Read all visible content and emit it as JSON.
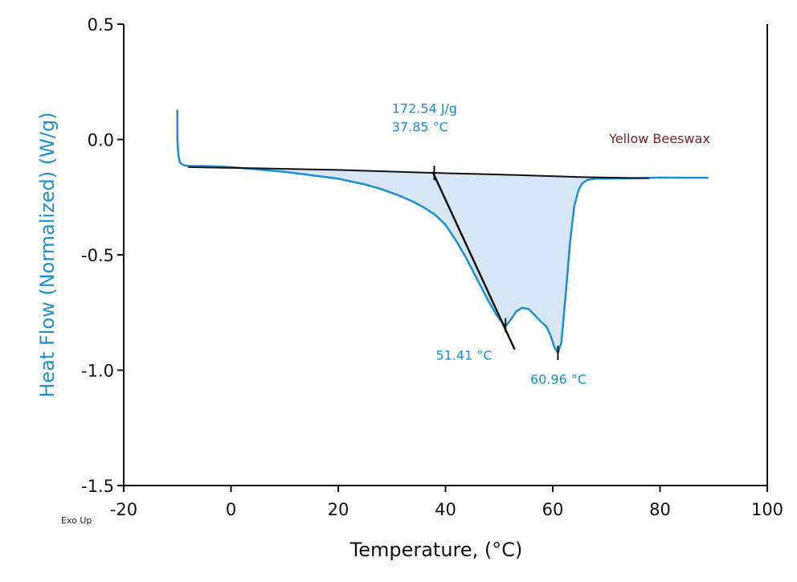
{
  "chart_data": {
    "type": "line",
    "xlabel": "Temperature, (°C)",
    "ylabel": "Heat Flow (Normalized) (W/g)",
    "xlim": [
      -20,
      100
    ],
    "ylim": [
      -1.5,
      0.5
    ],
    "x_ticks": [
      -20,
      0,
      20,
      40,
      60,
      80,
      100
    ],
    "y_ticks": [
      0.5,
      0.0,
      -0.5,
      -1.0,
      -1.5
    ],
    "x_tick_labels": [
      "-20",
      "0",
      "20",
      "40",
      "60",
      "80",
      "100"
    ],
    "y_tick_labels": [
      "0.5",
      "0.0",
      "-0.5",
      "-1.0",
      "-1.5"
    ],
    "corner_label": "Exo Up",
    "grid": false,
    "series": [
      {
        "name": "Yellow Beeswax",
        "color": "#1a8fd1",
        "x": [
          -10.0,
          -10.0,
          -9.8,
          -9.5,
          -9.0,
          -8.0,
          -5,
          0,
          5,
          10,
          15,
          20,
          25,
          28,
          31,
          34,
          36,
          38,
          40,
          42,
          44,
          46,
          48,
          49.5,
          50.8,
          51.4,
          52.2,
          53.2,
          54.3,
          55.5,
          56.8,
          57.8,
          58.8,
          59.6,
          60.3,
          60.96,
          61.6,
          62.3,
          63.2,
          64.0,
          64.8,
          65.5,
          66.5,
          68,
          70,
          75,
          80,
          85,
          89
        ],
        "y": [
          0.13,
          0.0,
          -0.07,
          -0.1,
          -0.11,
          -0.115,
          -0.115,
          -0.12,
          -0.13,
          -0.14,
          -0.155,
          -0.17,
          -0.195,
          -0.215,
          -0.24,
          -0.27,
          -0.295,
          -0.325,
          -0.37,
          -0.44,
          -0.52,
          -0.61,
          -0.7,
          -0.76,
          -0.8,
          -0.805,
          -0.78,
          -0.745,
          -0.73,
          -0.735,
          -0.765,
          -0.79,
          -0.81,
          -0.85,
          -0.9,
          -0.925,
          -0.88,
          -0.7,
          -0.45,
          -0.29,
          -0.22,
          -0.19,
          -0.175,
          -0.17,
          -0.17,
          -0.168,
          -0.165,
          -0.166,
          -0.166
        ]
      }
    ],
    "baseline": {
      "color": "#111111",
      "x": [
        -8,
        5,
        20,
        38,
        50,
        65,
        78
      ],
      "y": [
        -0.12,
        -0.125,
        -0.132,
        -0.145,
        -0.152,
        -0.163,
        -0.168
      ]
    },
    "integration_fill": {
      "color": "#d6e6f5",
      "x_range": [
        0,
        78
      ]
    },
    "onset_tangent": {
      "color": "#111111",
      "x": [
        37.6,
        52.9
      ],
      "y": [
        -0.14,
        -0.91
      ],
      "tick_marks": [
        {
          "x": 37.9,
          "y": -0.145
        },
        {
          "x": 51.2,
          "y": -0.805
        },
        {
          "x": 60.96,
          "y": -0.925
        }
      ]
    },
    "annotations": [
      {
        "text": "172.54 J/g",
        "x": 30.0,
        "y": 0.115,
        "color": "#1a8fd1"
      },
      {
        "text": "37.85 °C",
        "x": 30.0,
        "y": 0.035,
        "color": "#1a8fd1"
      },
      {
        "text": "51.41 °C",
        "x": 38.2,
        "y": -0.955,
        "color": "#1a8fd1"
      },
      {
        "text": "60.96 °C",
        "x": 55.8,
        "y": -1.06,
        "color": "#1a8fd1"
      },
      {
        "text": "Yellow Beeswax",
        "x": 70.5,
        "y": -0.015,
        "color": "#7a1f2b"
      }
    ],
    "colors": {
      "ylabel": "#1a8fd1",
      "xlabel": "#111111",
      "axes": "#111111"
    }
  }
}
